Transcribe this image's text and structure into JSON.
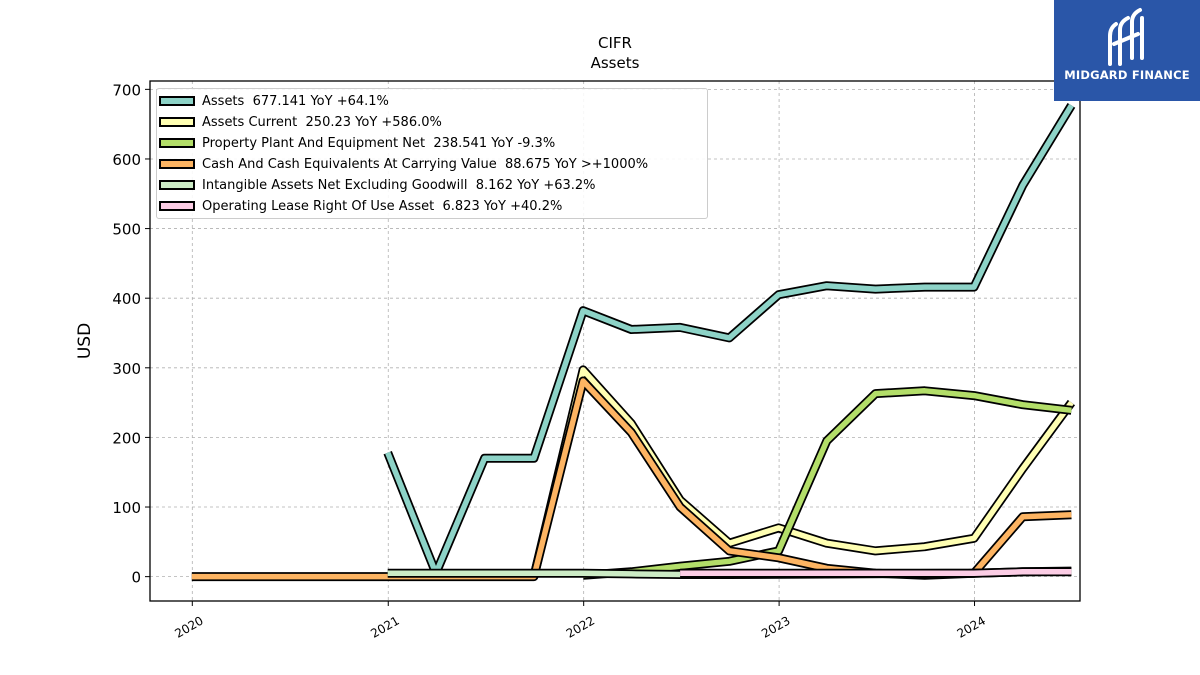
{
  "chart_data": {
    "type": "line",
    "title": "CIFR",
    "subtitle": "Assets",
    "ylabel": "USD",
    "xlabel": "",
    "ylim": [
      -35,
      712
    ],
    "xlim": [
      "2019-10-14",
      "2024-07-16"
    ],
    "x_tick_labels": [
      "2020",
      "2021",
      "2022",
      "2023",
      "2024"
    ],
    "y_tick_labels": [
      "0",
      "100",
      "200",
      "300",
      "400",
      "500",
      "600",
      "700"
    ],
    "grid": true,
    "legend_position": "top-left",
    "series": [
      {
        "name": "Assets  677.141 YoY +64.1%",
        "color": "#8dd3c7",
        "points": [
          [
            "2020-12-31",
            178
          ],
          [
            "2021-03-31",
            5
          ],
          [
            "2021-06-30",
            170
          ],
          [
            "2021-09-30",
            170
          ],
          [
            "2021-12-31",
            382
          ],
          [
            "2022-03-31",
            355
          ],
          [
            "2022-06-30",
            358
          ],
          [
            "2022-09-30",
            343
          ],
          [
            "2022-12-31",
            405
          ],
          [
            "2023-03-31",
            418
          ],
          [
            "2023-06-30",
            413
          ],
          [
            "2023-09-30",
            416
          ],
          [
            "2023-12-31",
            416
          ],
          [
            "2024-03-31",
            562
          ],
          [
            "2024-06-30",
            677
          ]
        ]
      },
      {
        "name": "Assets Current  250.23 YoY +586.0%",
        "color": "#ffffb3",
        "points": [
          [
            "2021-09-30",
            0
          ],
          [
            "2021-12-31",
            297
          ],
          [
            "2022-03-31",
            220
          ],
          [
            "2022-06-30",
            110
          ],
          [
            "2022-09-30",
            48
          ],
          [
            "2022-12-31",
            70
          ],
          [
            "2023-03-31",
            48
          ],
          [
            "2023-06-30",
            37
          ],
          [
            "2023-09-30",
            43
          ],
          [
            "2023-12-31",
            55
          ],
          [
            "2024-03-31",
            155
          ],
          [
            "2024-06-30",
            250
          ]
        ]
      },
      {
        "name": "Property Plant And Equipment Net  238.541 YoY -9.3%",
        "color": "#b3de69",
        "points": [
          [
            "2021-12-31",
            2
          ],
          [
            "2022-03-31",
            7
          ],
          [
            "2022-06-30",
            15
          ],
          [
            "2022-09-30",
            22
          ],
          [
            "2022-12-31",
            37
          ],
          [
            "2023-03-31",
            195
          ],
          [
            "2023-06-30",
            263
          ],
          [
            "2023-09-30",
            267
          ],
          [
            "2023-12-31",
            260
          ],
          [
            "2024-03-31",
            247
          ],
          [
            "2024-06-30",
            239
          ]
        ]
      },
      {
        "name": "Cash And Cash Equivalents At Carrying Value  88.675 YoY >+1000%",
        "color": "#fdb462",
        "points": [
          [
            "2019-12-31",
            0
          ],
          [
            "2020-12-31",
            0
          ],
          [
            "2021-09-30",
            0
          ],
          [
            "2021-12-31",
            281
          ],
          [
            "2022-03-31",
            207
          ],
          [
            "2022-06-30",
            100
          ],
          [
            "2022-09-30",
            37
          ],
          [
            "2022-12-31",
            27
          ],
          [
            "2023-03-31",
            12
          ],
          [
            "2023-06-30",
            5
          ],
          [
            "2023-09-30",
            2
          ],
          [
            "2023-12-31",
            5
          ],
          [
            "2024-03-31",
            86
          ],
          [
            "2024-06-30",
            89
          ]
        ]
      },
      {
        "name": "Intangible Assets Net Excluding Goodwill  8.162 YoY +63.2%",
        "color": "#ccebc5",
        "points": [
          [
            "2020-12-31",
            5
          ],
          [
            "2021-12-31",
            5
          ],
          [
            "2022-03-31",
            4
          ],
          [
            "2022-06-30",
            3
          ],
          [
            "2022-09-30",
            3
          ],
          [
            "2023-12-31",
            5
          ],
          [
            "2024-03-31",
            7
          ],
          [
            "2024-06-30",
            8
          ]
        ]
      },
      {
        "name": "Operating Lease Right Of Use Asset  6.823 YoY +40.2%",
        "color": "#fccde5",
        "points": [
          [
            "2022-06-30",
            5
          ],
          [
            "2023-12-31",
            5
          ],
          [
            "2024-03-31",
            7
          ],
          [
            "2024-06-30",
            7
          ]
        ]
      }
    ]
  },
  "logo": {
    "text": "MIDGARD FINANCE",
    "background": "#2a56a8"
  }
}
